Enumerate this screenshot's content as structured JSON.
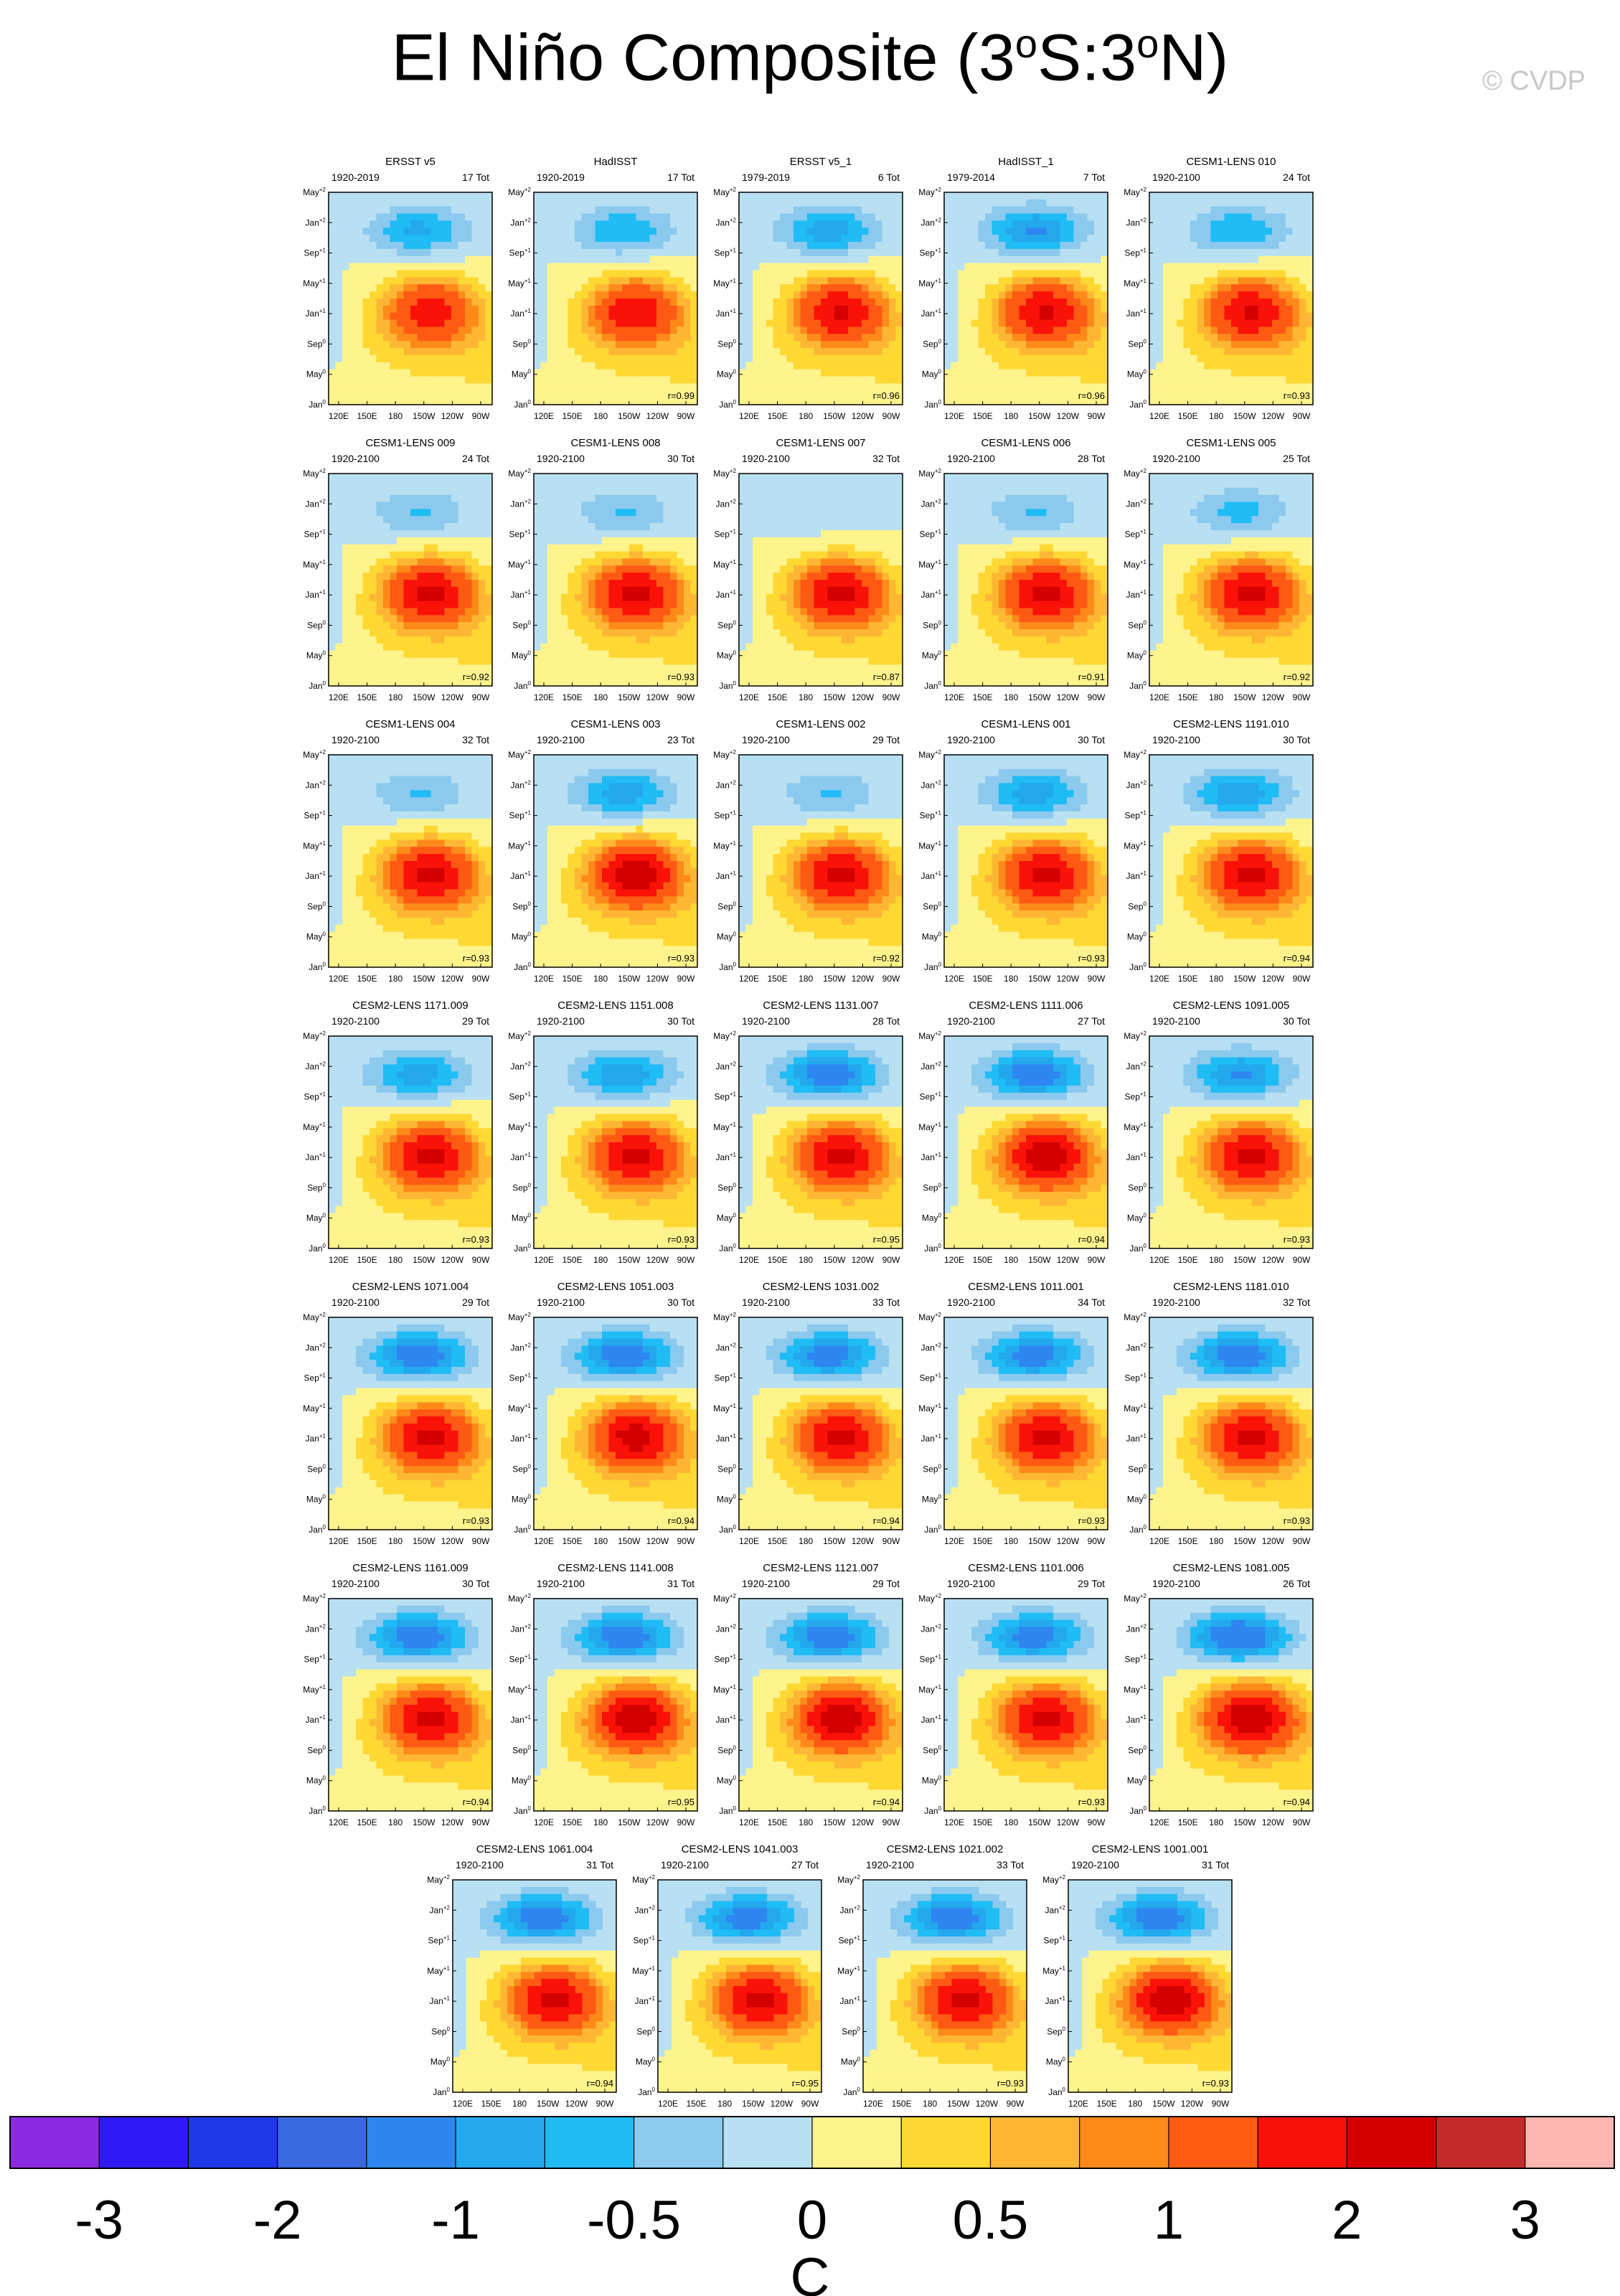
{
  "title_parts": {
    "lead": "El Niño Composite (3",
    "deg1": "o",
    "mid": "S:3",
    "deg2": "o",
    "tail": "N)"
  },
  "watermark": "© CVDP",
  "chart_data": {
    "type": "heatmap",
    "description_axes": {
      "x_ticks": [
        "120E",
        "150E",
        "180",
        "150W",
        "120W",
        "90W"
      ],
      "y_ticks": [
        "Jan0",
        "May0",
        "Sep0",
        "Jan+1",
        "May+1",
        "Sep+1",
        "Jan+2",
        "May+2"
      ]
    },
    "y_tick_labels": [
      {
        "base": "May",
        "sup": "+2"
      },
      {
        "base": "Jan",
        "sup": "+2"
      },
      {
        "base": "Sep",
        "sup": "+1"
      },
      {
        "base": "May",
        "sup": "+1"
      },
      {
        "base": "Jan",
        "sup": "+1"
      },
      {
        "base": "Sep",
        "sup": "0"
      },
      {
        "base": "May",
        "sup": "0"
      },
      {
        "base": "Jan",
        "sup": "0"
      }
    ],
    "x_tick_labels": [
      "120E",
      "150E",
      "180",
      "150W",
      "120W",
      "90W"
    ],
    "panels": [
      {
        "name": "ERSST v5",
        "years": "1920-2019",
        "count": "17 Tot",
        "r": "",
        "warm": 0.85,
        "cold": 0.55
      },
      {
        "name": "HadISST",
        "years": "1920-2019",
        "count": "17 Tot",
        "r": "r=0.99",
        "warm": 0.9,
        "cold": 0.5
      },
      {
        "name": "ERSST v5_1",
        "years": "1979-2019",
        "count": "6 Tot",
        "r": "r=0.96",
        "warm": 0.95,
        "cold": 0.6
      },
      {
        "name": "HadISST_1",
        "years": "1979-2014",
        "count": "7 Tot",
        "r": "r=0.96",
        "warm": 0.95,
        "cold": 0.7
      },
      {
        "name": "CESM1-LENS 010",
        "years": "1920-2100",
        "count": "24 Tot",
        "r": "r=0.93",
        "warm": 0.95,
        "cold": 0.5
      },
      {
        "name": "CESM1-LENS 009",
        "years": "1920-2100",
        "count": "24 Tot",
        "r": "r=0.92",
        "warm": 1.0,
        "cold": 0.35
      },
      {
        "name": "CESM1-LENS 008",
        "years": "1920-2100",
        "count": "30 Tot",
        "r": "r=0.93",
        "warm": 1.0,
        "cold": 0.35
      },
      {
        "name": "CESM1-LENS 007",
        "years": "1920-2100",
        "count": "32 Tot",
        "r": "r=0.87",
        "warm": 1.0,
        "cold": 0.1
      },
      {
        "name": "CESM1-LENS 006",
        "years": "1920-2100",
        "count": "28 Tot",
        "r": "r=0.91",
        "warm": 1.0,
        "cold": 0.35
      },
      {
        "name": "CESM1-LENS 005",
        "years": "1920-2100",
        "count": "25 Tot",
        "r": "r=0.92",
        "warm": 1.0,
        "cold": 0.4
      },
      {
        "name": "CESM1-LENS 004",
        "years": "1920-2100",
        "count": "32 Tot",
        "r": "r=0.93",
        "warm": 1.0,
        "cold": 0.35
      },
      {
        "name": "CESM1-LENS 003",
        "years": "1920-2100",
        "count": "23 Tot",
        "r": "r=0.93",
        "warm": 1.1,
        "cold": 0.6
      },
      {
        "name": "CESM1-LENS 002",
        "years": "1920-2100",
        "count": "29 Tot",
        "r": "r=0.92",
        "warm": 1.0,
        "cold": 0.35
      },
      {
        "name": "CESM1-LENS 001",
        "years": "1920-2100",
        "count": "30 Tot",
        "r": "r=0.93",
        "warm": 1.0,
        "cold": 0.6
      },
      {
        "name": "CESM2-LENS 1191.010",
        "years": "1920-2100",
        "count": "30 Tot",
        "r": "r=0.94",
        "warm": 1.0,
        "cold": 0.65
      },
      {
        "name": "CESM2-LENS 1171.009",
        "years": "1920-2100",
        "count": "29 Tot",
        "r": "r=0.93",
        "warm": 1.0,
        "cold": 0.6
      },
      {
        "name": "CESM2-LENS 1151.008",
        "years": "1920-2100",
        "count": "30 Tot",
        "r": "r=0.93",
        "warm": 1.0,
        "cold": 0.65
      },
      {
        "name": "CESM2-LENS 1131.007",
        "years": "1920-2100",
        "count": "28 Tot",
        "r": "r=0.95",
        "warm": 1.0,
        "cold": 0.85
      },
      {
        "name": "CESM2-LENS 1111.006",
        "years": "1920-2100",
        "count": "27 Tot",
        "r": "r=0.94",
        "warm": 1.1,
        "cold": 0.85
      },
      {
        "name": "CESM2-LENS 1091.005",
        "years": "1920-2100",
        "count": "30 Tot",
        "r": "r=0.93",
        "warm": 1.0,
        "cold": 0.7
      },
      {
        "name": "CESM2-LENS 1071.004",
        "years": "1920-2100",
        "count": "29 Tot",
        "r": "r=0.93",
        "warm": 1.0,
        "cold": 0.85
      },
      {
        "name": "CESM2-LENS 1051.003",
        "years": "1920-2100",
        "count": "30 Tot",
        "r": "r=0.94",
        "warm": 1.05,
        "cold": 0.85
      },
      {
        "name": "CESM2-LENS 1031.002",
        "years": "1920-2100",
        "count": "33 Tot",
        "r": "r=0.94",
        "warm": 1.0,
        "cold": 0.8
      },
      {
        "name": "CESM2-LENS 1011.001",
        "years": "1920-2100",
        "count": "34 Tot",
        "r": "r=0.93",
        "warm": 1.0,
        "cold": 0.8
      },
      {
        "name": "CESM2-LENS 1181.010",
        "years": "1920-2100",
        "count": "32 Tot",
        "r": "r=0.93",
        "warm": 1.0,
        "cold": 0.85
      },
      {
        "name": "CESM2-LENS 1161.009",
        "years": "1920-2100",
        "count": "30 Tot",
        "r": "r=0.94",
        "warm": 1.0,
        "cold": 0.85
      },
      {
        "name": "CESM2-LENS 1141.008",
        "years": "1920-2100",
        "count": "31 Tot",
        "r": "r=0.95",
        "warm": 1.1,
        "cold": 0.85
      },
      {
        "name": "CESM2-LENS 1121.007",
        "years": "1920-2100",
        "count": "29 Tot",
        "r": "r=0.94",
        "warm": 1.1,
        "cold": 0.85
      },
      {
        "name": "CESM2-LENS 1101.006",
        "years": "1920-2100",
        "count": "29 Tot",
        "r": "r=0.93",
        "warm": 1.0,
        "cold": 0.8
      },
      {
        "name": "CESM2-LENS 1081.005",
        "years": "1920-2100",
        "count": "26 Tot",
        "r": "r=0.94",
        "warm": 1.15,
        "cold": 0.95
      },
      {
        "name": "CESM2-LENS 1061.004",
        "years": "1920-2100",
        "count": "31 Tot",
        "r": "r=0.94",
        "warm": 1.0,
        "cold": 0.85
      },
      {
        "name": "CESM2-LENS 1041.003",
        "years": "1920-2100",
        "count": "27 Tot",
        "r": "r=0.95",
        "warm": 1.0,
        "cold": 0.8
      },
      {
        "name": "CESM2-LENS 1021.002",
        "years": "1920-2100",
        "count": "33 Tot",
        "r": "r=0.93",
        "warm": 1.0,
        "cold": 0.85
      },
      {
        "name": "CESM2-LENS 1001.001",
        "years": "1920-2100",
        "count": "31 Tot",
        "r": "r=0.93",
        "warm": 1.1,
        "cold": 0.85
      }
    ],
    "colorbar": {
      "colors": [
        "#8a2be2",
        "#2e1af5",
        "#1e3ae8",
        "#3a68de",
        "#2e86f0",
        "#23a8ee",
        "#1fbcf5",
        "#8cc9ee",
        "#b8e0f2",
        "#fff38c",
        "#ffd833",
        "#ffb733",
        "#ff8a1a",
        "#ff5a14",
        "#fa1208",
        "#d40000",
        "#c42a2a",
        "#ffb5b0"
      ],
      "tick_labels": [
        "-3",
        "-2",
        "-1",
        "-0.5",
        "0",
        "0.5",
        "1",
        "2",
        "3"
      ],
      "unit": "C"
    }
  }
}
